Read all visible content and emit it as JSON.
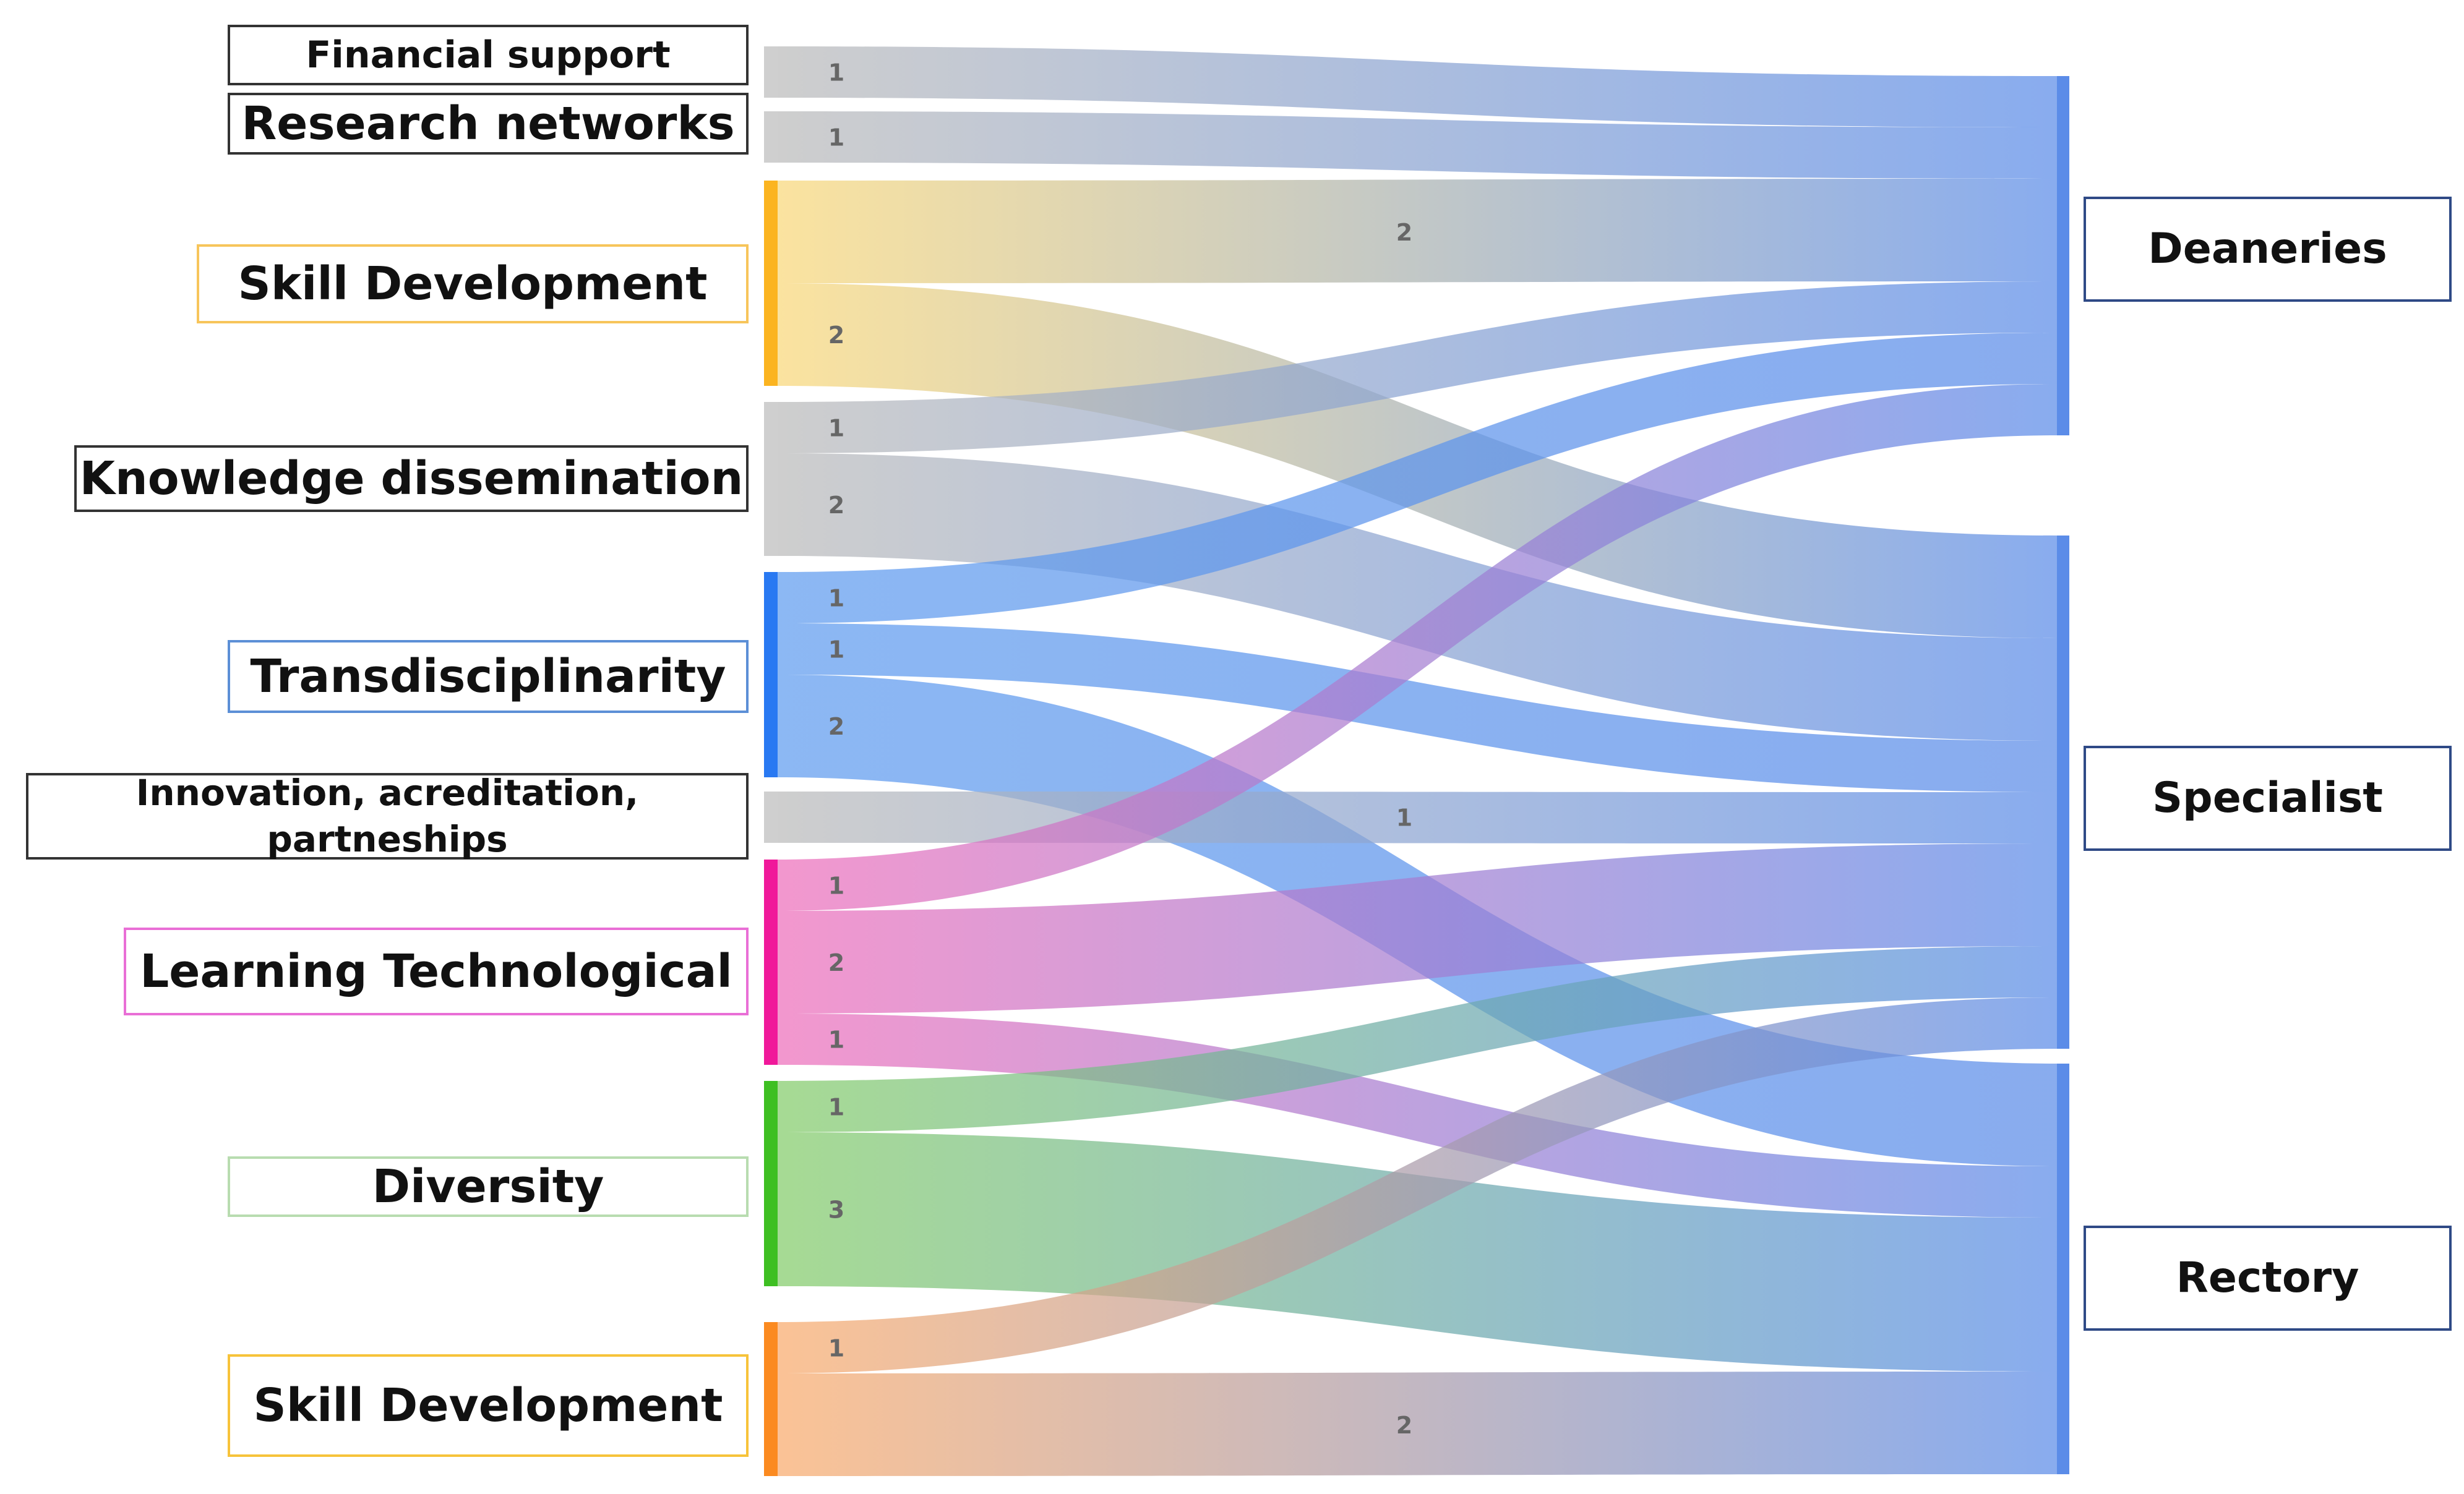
{
  "sources": [
    {
      "id": "s0",
      "label": "Financial support",
      "color": "#bbbbbb",
      "bar_color": "#cfcfcf",
      "border": "#333333"
    },
    {
      "id": "s1",
      "label": "Research networks",
      "color": "#bbbbbb",
      "bar_color": "#cfcfcf",
      "border": "#333333"
    },
    {
      "id": "s2",
      "label": "Skill Development",
      "color": "#f9d87a",
      "bar_color": "#fbb420",
      "border": "#f7c55b"
    },
    {
      "id": "s3",
      "label": "Knowledge dissemination",
      "color": "#bbbbbb",
      "bar_color": "#cfcfcf",
      "border": "#333333"
    },
    {
      "id": "s4",
      "label": "Transdisciplinarity",
      "color": "#5f9cef",
      "bar_color": "#2979f2",
      "border": "#5c8fd6"
    },
    {
      "id": "s5",
      "label": "Innovation, acreditation, partneships",
      "color": "#bbbbbb",
      "bar_color": "#cfcfcf",
      "border": "#333333"
    },
    {
      "id": "s6",
      "label": "Learning Technological",
      "color": "#ee6fbb",
      "bar_color": "#f0189a",
      "border": "#e96fd6"
    },
    {
      "id": "s7",
      "label": "Diversity",
      "color": "#84cc6a",
      "bar_color": "#3ebf22",
      "border": "#b8dcb0"
    },
    {
      "id": "s8",
      "label": "Skill Development",
      "color": "#f9ab6d",
      "bar_color": "#fb8a20",
      "border": "#f7c33a"
    }
  ],
  "targets": [
    {
      "id": "t0",
      "label": "Deaneries",
      "bar_color": "#5b8ce8"
    },
    {
      "id": "t1",
      "label": "Specialist",
      "bar_color": "#5b8ce8"
    },
    {
      "id": "t2",
      "label": "Rectory",
      "bar_color": "#5b8ce8"
    }
  ],
  "flows": [
    {
      "source": "s0",
      "target": "t0",
      "value": 1,
      "label": "1"
    },
    {
      "source": "s1",
      "target": "t0",
      "value": 1,
      "label": "1"
    },
    {
      "source": "s2",
      "target": "t0",
      "value": 2,
      "label": "2"
    },
    {
      "source": "s2",
      "target": "t1",
      "value": 2,
      "label": "2"
    },
    {
      "source": "s3",
      "target": "t0",
      "value": 1,
      "label": "1"
    },
    {
      "source": "s3",
      "target": "t1",
      "value": 2,
      "label": "2"
    },
    {
      "source": "s4",
      "target": "t0",
      "value": 1,
      "label": "1"
    },
    {
      "source": "s4",
      "target": "t1",
      "value": 1,
      "label": "1"
    },
    {
      "source": "s4",
      "target": "t2",
      "value": 2,
      "label": "2"
    },
    {
      "source": "s5",
      "target": "t1",
      "value": 1,
      "label": "1"
    },
    {
      "source": "s6",
      "target": "t0",
      "value": 1,
      "label": "1"
    },
    {
      "source": "s6",
      "target": "t1",
      "value": 2,
      "label": "2"
    },
    {
      "source": "s6",
      "target": "t2",
      "value": 1,
      "label": "1"
    },
    {
      "source": "s7",
      "target": "t1",
      "value": 1,
      "label": "1"
    },
    {
      "source": "s7",
      "target": "t2",
      "value": 3,
      "label": "3"
    },
    {
      "source": "s8",
      "target": "t1",
      "value": 1,
      "label": "1"
    },
    {
      "source": "s8",
      "target": "t2",
      "value": 2,
      "label": "2"
    }
  ]
}
